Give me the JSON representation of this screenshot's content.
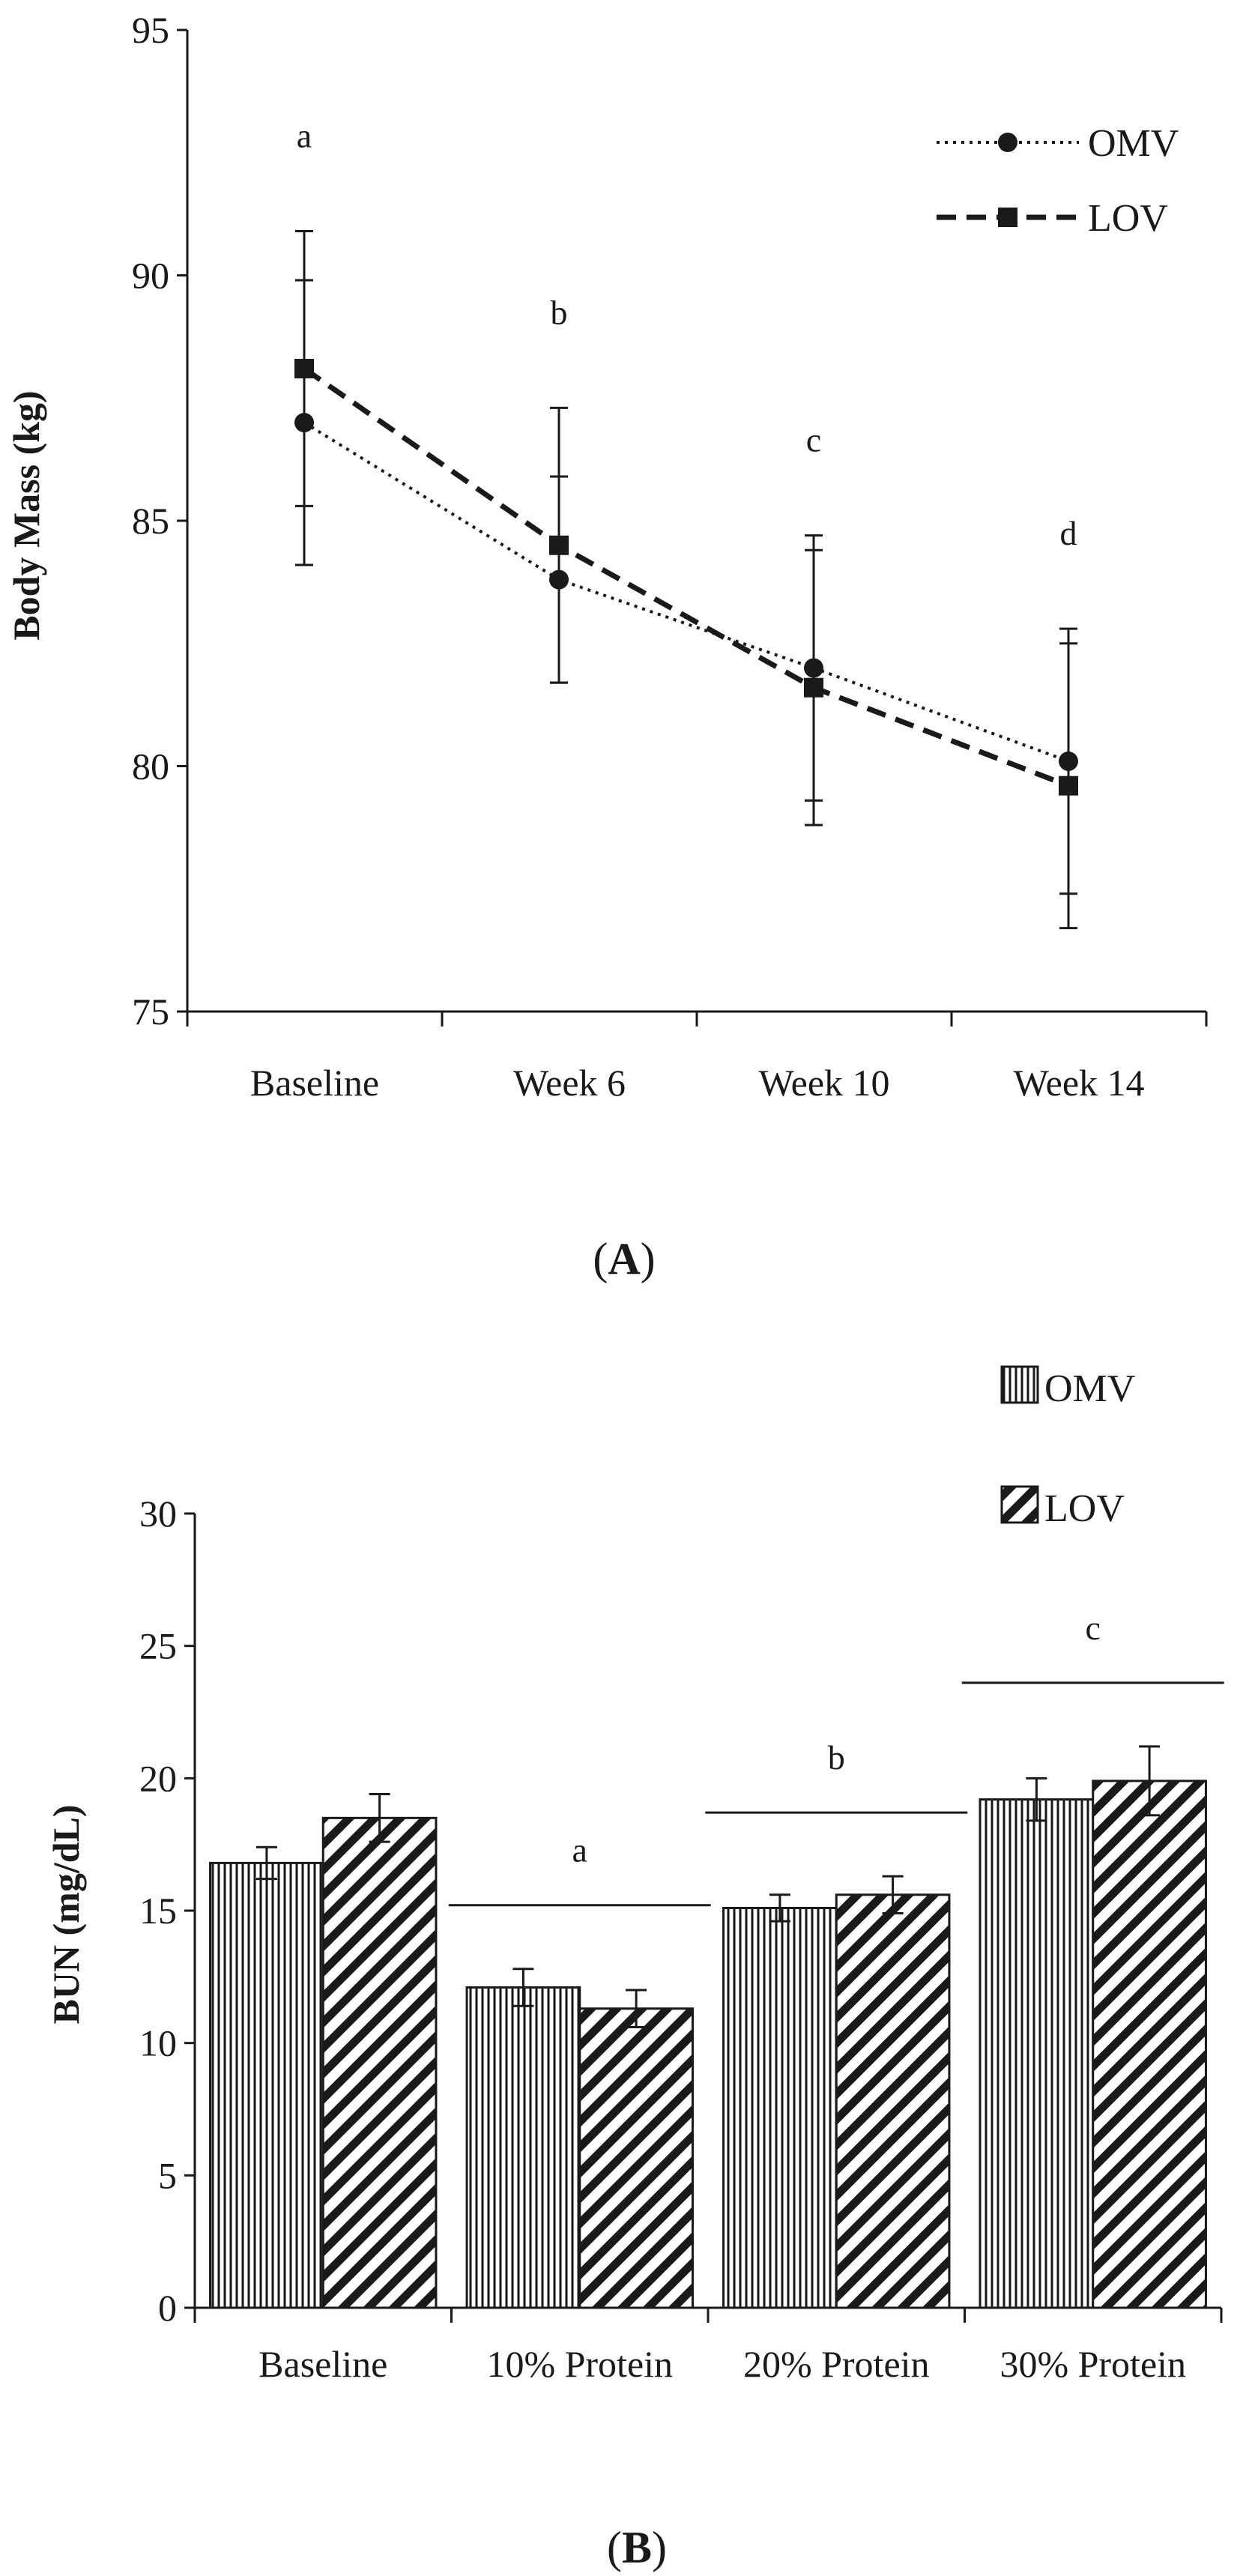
{
  "chart_data": [
    {
      "panel_label": "A",
      "type": "line",
      "ylabel": "Body Mass (kg)",
      "xlabel": "",
      "ylim": [
        75,
        95
      ],
      "yticks": [
        75,
        80,
        85,
        90,
        95
      ],
      "categories": [
        "Baseline",
        "Week 6",
        "Week 10",
        "Week 14"
      ],
      "legend_position": "top-right",
      "series": [
        {
          "name": "OMV",
          "style": "dotted",
          "marker": "circle",
          "values": [
            87.0,
            83.8,
            82.0,
            80.1
          ],
          "error": [
            2.9,
            2.1,
            2.7,
            2.7
          ]
        },
        {
          "name": "LOV",
          "style": "dashed",
          "marker": "square",
          "values": [
            88.1,
            84.5,
            81.6,
            79.6
          ],
          "error": [
            2.8,
            2.8,
            2.8,
            2.9
          ]
        }
      ],
      "annotations": [
        "a",
        "b",
        "c",
        "d"
      ]
    },
    {
      "panel_label": "B",
      "type": "bar",
      "ylabel": "BUN (mg/dL)",
      "xlabel": "",
      "ylim": [
        0,
        30
      ],
      "yticks": [
        0,
        5,
        10,
        15,
        20,
        25,
        30
      ],
      "categories": [
        "Baseline",
        "10% Protein",
        "20% Protein",
        "30% Protein"
      ],
      "legend_position": "top-right",
      "series": [
        {
          "name": "OMV",
          "pattern": "vertical-lines",
          "values": [
            16.8,
            12.1,
            15.1,
            19.2
          ],
          "error": [
            0.6,
            0.7,
            0.5,
            0.8
          ]
        },
        {
          "name": "LOV",
          "pattern": "diagonal-lines",
          "values": [
            18.5,
            11.3,
            15.6,
            19.9
          ],
          "error": [
            0.9,
            0.7,
            0.7,
            1.3
          ]
        }
      ],
      "annotations": [
        "a",
        "b",
        "c"
      ]
    }
  ]
}
